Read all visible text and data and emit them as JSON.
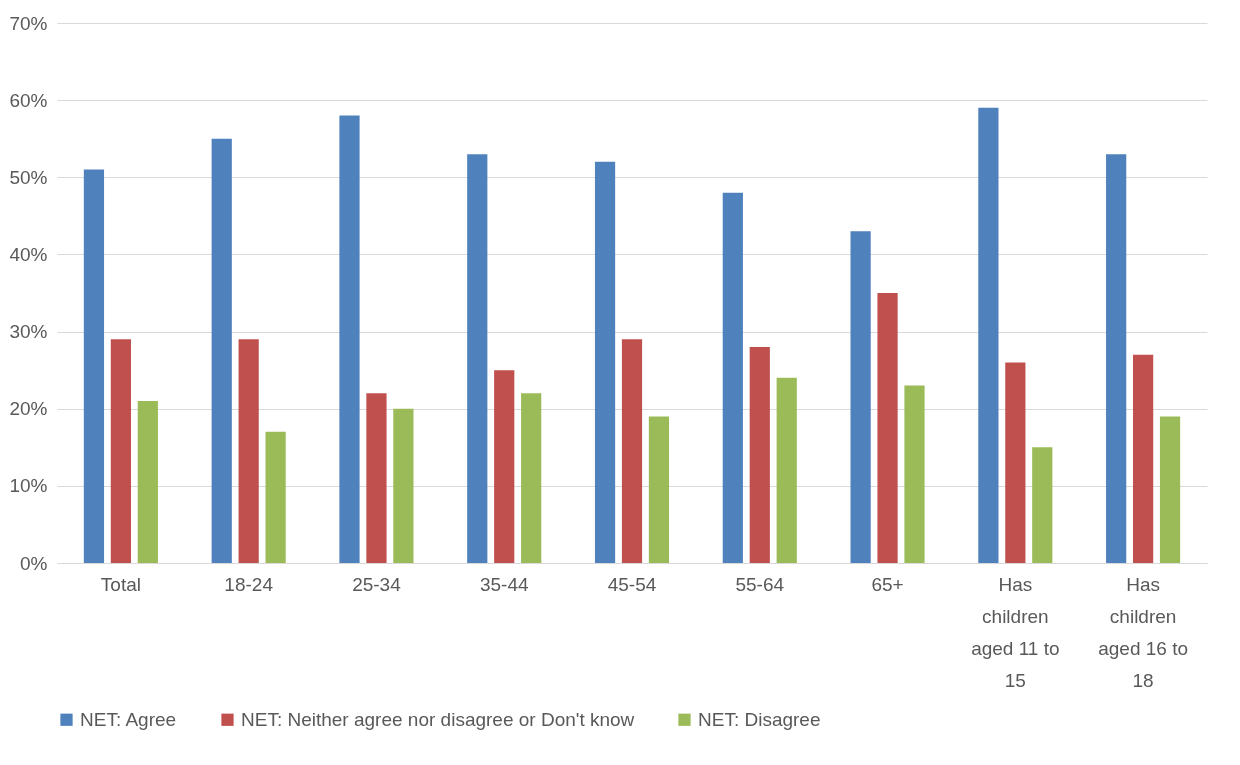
{
  "chart_data": {
    "type": "bar",
    "categories": [
      "Total",
      "18-24",
      "25-34",
      "35-44",
      "45-54",
      "55-64",
      "65+",
      "Has children aged 11 to 15",
      "Has children aged 16 to 18"
    ],
    "series": [
      {
        "name": "NET: Agree",
        "color": "#4f81bd",
        "values": [
          51,
          55,
          58,
          53,
          52,
          48,
          43,
          59,
          53
        ]
      },
      {
        "name": "NET: Neither agree nor disagree or Don't know",
        "color": "#c0504d",
        "values": [
          29,
          29,
          22,
          25,
          29,
          28,
          35,
          26,
          27
        ]
      },
      {
        "name": "NET: Disagree",
        "color": "#9bbb59",
        "values": [
          21,
          17,
          20,
          22,
          19,
          24,
          23,
          15,
          19
        ]
      }
    ],
    "ylim": [
      0,
      70
    ],
    "yticks": [
      {
        "value": 0,
        "label": "0%"
      },
      {
        "value": 10,
        "label": "10%"
      },
      {
        "value": 20,
        "label": "20%"
      },
      {
        "value": 30,
        "label": "30%"
      },
      {
        "value": 40,
        "label": "40%"
      },
      {
        "value": 50,
        "label": "50%"
      },
      {
        "value": 60,
        "label": "60%"
      },
      {
        "value": 70,
        "label": "70%"
      }
    ],
    "grid": "y",
    "legend": "bottom"
  }
}
